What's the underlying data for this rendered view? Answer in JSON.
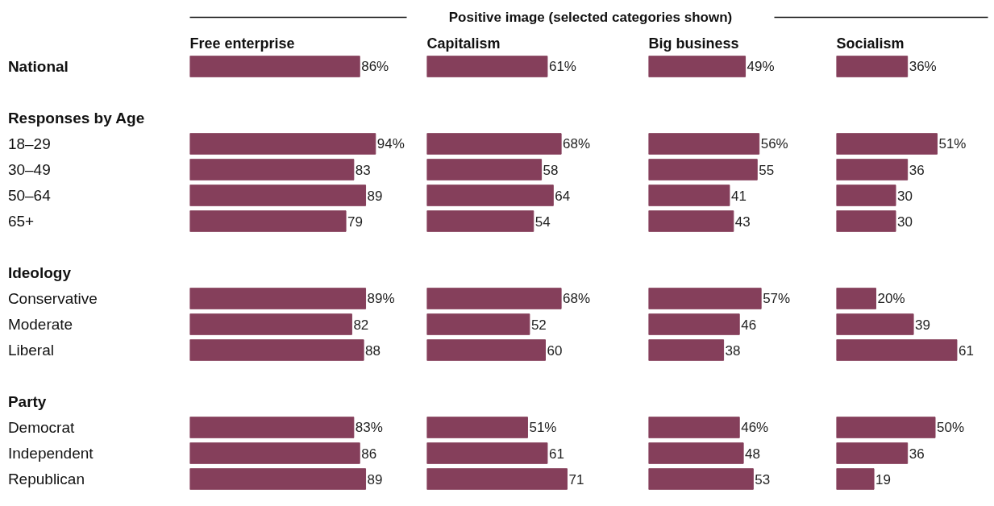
{
  "chart_data": [
    {
      "type": "bar",
      "orientation": "horizontal",
      "title": "Free enterprise",
      "annotations": [
        "Positive image (selected categories shown)"
      ],
      "tick_labels": "y",
      "grid": false,
      "categories": [
        "National",
        null,
        "Responses by Age",
        "18–29",
        "30–49",
        "50–64",
        "65+",
        null,
        "Ideology",
        "Conservative",
        "Moderate",
        "Liberal",
        null,
        "Party",
        "Democrat",
        "Independent",
        "Republican"
      ],
      "series": [
        {
          "color": "#853f5b",
          "values": [
            86,
            null,
            null,
            94,
            83,
            89,
            79,
            null,
            null,
            89,
            82,
            88,
            null,
            null,
            83,
            86,
            89
          ],
          "value_labels": [
            "86%",
            null,
            null,
            "94%",
            "83",
            "89",
            "79",
            null,
            null,
            "89%",
            "82",
            "88",
            null,
            null,
            "83%",
            "86",
            "89"
          ]
        }
      ]
    },
    {
      "type": "bar",
      "orientation": "horizontal",
      "title": "Capitalism",
      "tick_labels": false,
      "grid": false,
      "series": [
        {
          "color": "#853f5b",
          "values": [
            61,
            null,
            null,
            68,
            58,
            64,
            54,
            null,
            null,
            68,
            52,
            60,
            null,
            null,
            51,
            61,
            71
          ],
          "value_labels": [
            "61%",
            null,
            null,
            "68%",
            "58",
            "64",
            "54",
            null,
            null,
            "68%",
            "52",
            "60",
            null,
            null,
            "51%",
            "61",
            "71"
          ]
        }
      ]
    },
    {
      "type": "bar",
      "orientation": "horizontal",
      "title": "Big business",
      "tick_labels": false,
      "grid": false,
      "series": [
        {
          "color": "#853f5b",
          "values": [
            49,
            null,
            null,
            56,
            55,
            41,
            43,
            null,
            null,
            57,
            46,
            38,
            null,
            null,
            46,
            48,
            53
          ],
          "value_labels": [
            "49%",
            null,
            null,
            "56%",
            "55",
            "41",
            "43",
            null,
            null,
            "57%",
            "46",
            "38",
            null,
            null,
            "46%",
            "48",
            "53"
          ]
        }
      ]
    },
    {
      "type": "bar",
      "orientation": "horizontal",
      "title": "Socialism",
      "tick_labels": false,
      "grid": false,
      "series": [
        {
          "color": "#853f5b",
          "values": [
            36,
            null,
            null,
            51,
            36,
            30,
            30,
            null,
            null,
            20,
            39,
            61,
            null,
            null,
            50,
            36,
            19
          ],
          "value_labels": [
            "36%",
            null,
            null,
            "51%",
            "36",
            "30",
            "30",
            null,
            null,
            "20%",
            "39",
            "61",
            null,
            null,
            "50%",
            "36",
            "19"
          ]
        }
      ]
    }
  ]
}
